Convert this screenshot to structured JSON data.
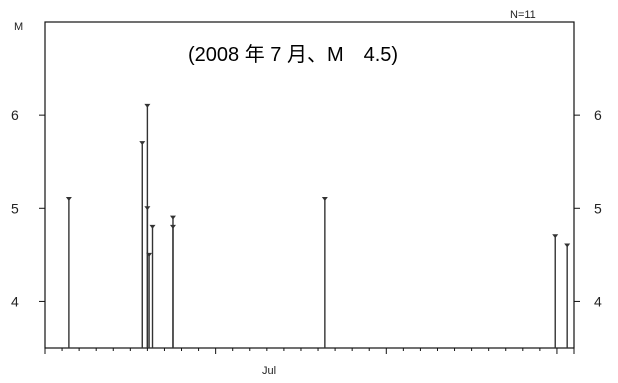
{
  "chart_data": {
    "type": "stem",
    "title": "(2008 年 7 月、M　4.5)",
    "ylabel": "M",
    "count_label": "N=11",
    "x_tick_label": "Jul",
    "ylim": [
      3.5,
      7.0
    ],
    "y_ticks": [
      4,
      5,
      6
    ],
    "y_tick_labels": [
      "4",
      "5",
      "6"
    ],
    "x_day_range": [
      0,
      31
    ],
    "values": [
      {
        "day": 1.4,
        "m": 5.1
      },
      {
        "day": 5.7,
        "m": 5.7
      },
      {
        "day": 6.0,
        "m": 6.1
      },
      {
        "day": 6.0,
        "m": 5.0
      },
      {
        "day": 6.1,
        "m": 4.5
      },
      {
        "day": 6.3,
        "m": 4.8
      },
      {
        "day": 7.5,
        "m": 4.9
      },
      {
        "day": 7.5,
        "m": 4.8
      },
      {
        "day": 16.4,
        "m": 5.1
      },
      {
        "day": 29.9,
        "m": 4.7
      },
      {
        "day": 30.6,
        "m": 4.6
      }
    ],
    "grid": false,
    "colors": {
      "line": "#333333",
      "axis": "#111111"
    }
  }
}
